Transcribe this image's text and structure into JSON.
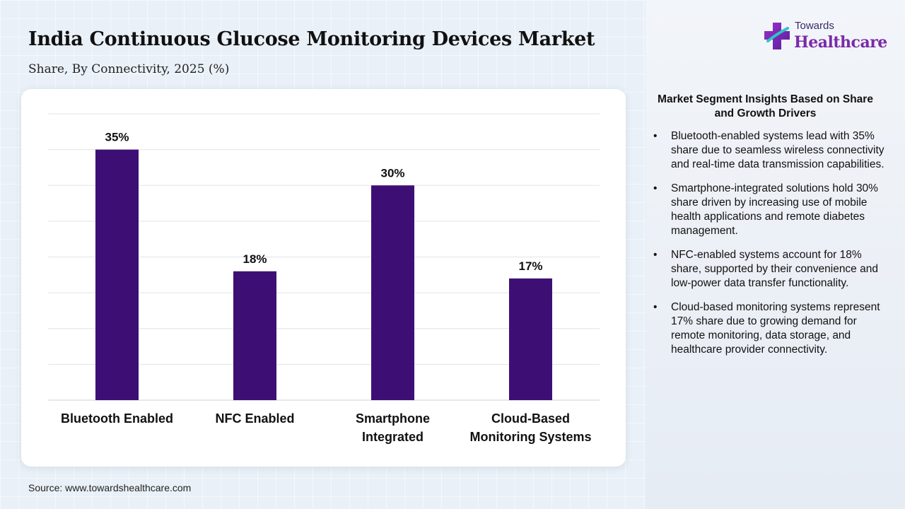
{
  "header": {
    "title": "India Continuous Glucose Monitoring Devices Market",
    "subtitle": "Share, By Connectivity, 2025 (%)"
  },
  "logo": {
    "small_text": "Towards",
    "big_text": "Healthcare",
    "icon": "medical-cross-icon"
  },
  "chart_data": {
    "type": "bar",
    "categories": [
      [
        "Bluetooth Enabled"
      ],
      [
        "NFC Enabled"
      ],
      [
        "Smartphone",
        "Integrated"
      ],
      [
        "Cloud-Based",
        "Monitoring Systems"
      ]
    ],
    "values": [
      35,
      18,
      30,
      17
    ],
    "data_labels": [
      "35%",
      "18%",
      "30%",
      "17%"
    ],
    "ylim": [
      0,
      40
    ],
    "grid": true,
    "bar_color": "#3d0f75"
  },
  "insights": {
    "heading": "Market Segment Insights Based on Share and Growth Drivers",
    "bullet_char": "•",
    "items": [
      "Bluetooth-enabled systems lead with 35% share due to seamless wireless connectivity and real-time data transmission capabilities.",
      "Smartphone-integrated solutions hold 30% share driven by increasing use of mobile health applications and remote diabetes management.",
      "NFC-enabled systems account for 18% share, supported by their convenience and low-power data transfer functionality.",
      "Cloud-based monitoring systems represent 17% share due to growing demand for remote monitoring, data storage, and healthcare provider connectivity."
    ]
  },
  "footer": {
    "source": "Source: www.towardshealthcare.com"
  }
}
